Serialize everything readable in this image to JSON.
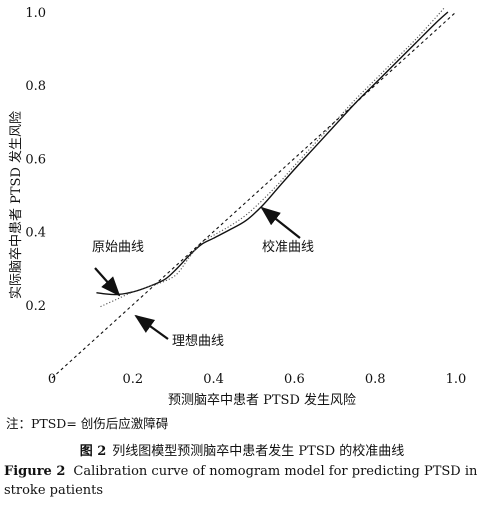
{
  "chart_data": {
    "type": "line",
    "xlabel": "预测脑卒中患者 PTSD 发生风险",
    "ylabel": "实际脑卒中患者 PTSD 发生风险",
    "xlim": [
      0,
      1.0
    ],
    "ylim": [
      0,
      1.0
    ],
    "x_ticks": [
      "0",
      "0.2",
      "0.4",
      "0.6",
      "0.8",
      "1.0"
    ],
    "y_ticks": [
      "0.2",
      "0.4",
      "0.6",
      "0.8",
      "1.0"
    ],
    "grid": false,
    "series": [
      {
        "name": "原始曲线",
        "style": "solid",
        "x": [
          0.11,
          0.13,
          0.16,
          0.2,
          0.24,
          0.28,
          0.31,
          0.34,
          0.37,
          0.4,
          0.44,
          0.48,
          0.52,
          0.56,
          0.6,
          0.65,
          0.7,
          0.75,
          0.8,
          0.85,
          0.9,
          0.95,
          0.98
        ],
        "y": [
          0.233,
          0.23,
          0.228,
          0.235,
          0.25,
          0.27,
          0.3,
          0.335,
          0.365,
          0.382,
          0.405,
          0.43,
          0.47,
          0.52,
          0.57,
          0.63,
          0.69,
          0.75,
          0.805,
          0.86,
          0.915,
          0.97,
          1.0
        ]
      },
      {
        "name": "",
        "style": "dotted",
        "x": [
          0.12,
          0.16,
          0.2,
          0.24,
          0.28,
          0.31,
          0.34,
          0.37,
          0.4,
          0.44,
          0.48,
          0.52,
          0.56,
          0.6,
          0.65,
          0.7,
          0.75,
          0.8,
          0.85,
          0.9,
          0.95,
          0.97
        ],
        "y": [
          0.195,
          0.215,
          0.235,
          0.25,
          0.265,
          0.285,
          0.33,
          0.37,
          0.39,
          0.415,
          0.445,
          0.485,
          0.53,
          0.58,
          0.64,
          0.7,
          0.76,
          0.815,
          0.87,
          0.925,
          0.985,
          1.01
        ]
      },
      {
        "name": "理想曲线",
        "style": "dashed",
        "x": [
          0.0,
          1.0
        ],
        "y": [
          0.0,
          1.0
        ]
      }
    ],
    "annotations": [
      {
        "text": "原始曲线",
        "target": "原始曲线"
      },
      {
        "text": "校准曲线",
        "target": ""
      },
      {
        "text": "理想曲线",
        "target": "理想曲线"
      }
    ]
  },
  "note": "注：PTSD= 创伤后应激障碍",
  "caption_cn": {
    "label": "图 2",
    "text": "列线图模型预测脑卒中患者发生 PTSD 的校准曲线"
  },
  "caption_en": {
    "label": "Figure 2",
    "text": "Calibration curve of nomogram model for predicting PTSD in stroke patients"
  }
}
